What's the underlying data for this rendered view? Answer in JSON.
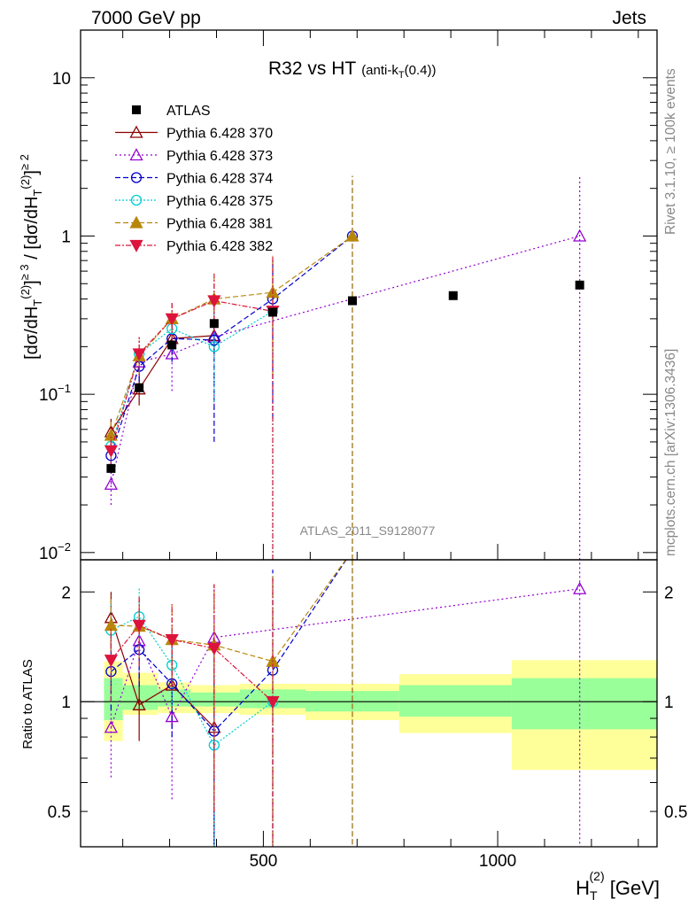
{
  "header": {
    "left": "7000 GeV pp",
    "right": "Jets"
  },
  "side": {
    "rivet": "Rivet 3.1.10, ≥ 100k events",
    "source": "mcplots.cern.ch [arXiv:1306.3436]"
  },
  "chart_data": [
    {
      "type": "scatter",
      "title": "R32 vs HT",
      "title_small": "(anti-k",
      "title_small_sub": "T",
      "title_small_end": "(0.4))",
      "analysis_label": "ATLAS_2011_S9128077",
      "yscale": "log",
      "ylim": [
        0.009,
        20
      ],
      "xlim": [
        110,
        1340
      ],
      "y_ticks": [
        {
          "value": 0.01,
          "base": "10",
          "exp": "−2"
        },
        {
          "value": 0.1,
          "base": "10",
          "exp": "−1"
        },
        {
          "value": 1,
          "base": "1",
          "exp": ""
        },
        {
          "value": 10,
          "base": "10",
          "exp": ""
        }
      ],
      "ylabel": {
        "a": "[dσ/dH",
        "b": "T",
        "c": "(2)",
        "d": "]",
        "e": "≥ 3",
        "f": " / [dσ/dH",
        "g": "T",
        "h": "(2)",
        "i": "]",
        "j": "≥ 2"
      },
      "series": [
        {
          "name": "ATLAS",
          "marker": "square",
          "color": "#000000",
          "line": "none",
          "x": [
            175,
            235,
            305,
            395,
            520,
            690,
            905,
            1175
          ],
          "y": [
            0.034,
            0.11,
            0.205,
            0.28,
            0.33,
            0.39,
            0.42,
            0.49
          ],
          "bins": [
            [
              160,
              200
            ],
            [
              200,
              275
            ],
            [
              275,
              345
            ],
            [
              345,
              450
            ],
            [
              450,
              590
            ],
            [
              590,
              790
            ],
            [
              790,
              1030
            ],
            [
              1030,
              1340
            ]
          ]
        },
        {
          "name": "Pythia 6.428 370",
          "marker": "tri-open",
          "color": "#8b0000",
          "dash": "",
          "x": [
            175,
            235,
            305,
            395
          ],
          "y": [
            0.058,
            0.108,
            0.225,
            0.235
          ],
          "err": [
            [
              0.045,
              0.07
            ],
            [
              0.085,
              0.14
            ],
            [
              0.18,
              0.28
            ],
            [
              0.18,
              0.29
            ]
          ]
        },
        {
          "name": "Pythia 6.428 373",
          "marker": "tri-open",
          "color": "#9400d3",
          "dash": "2,3",
          "x": [
            175,
            235,
            305,
            395,
            1175
          ],
          "y": [
            0.027,
            0.16,
            0.18,
            0.23,
            1.0
          ],
          "err": [
            [
              0.02,
              0.037
            ],
            [
              0.12,
              0.21
            ],
            [
              0.105,
              0.28
            ],
            [
              0.08,
              0.37
            ],
            [
              0.009,
              2.4
            ]
          ]
        },
        {
          "name": "Pythia 6.428 374",
          "marker": "circle-open",
          "color": "#0000cd",
          "dash": "6,3",
          "x": [
            175,
            235,
            305,
            395,
            520,
            690
          ],
          "y": [
            0.041,
            0.15,
            0.225,
            0.22,
            0.4,
            1.0
          ],
          "err": [
            [
              0.032,
              0.052
            ],
            [
              0.12,
              0.19
            ],
            [
              0.16,
              0.3
            ],
            [
              0.05,
              0.4
            ],
            [
              0.07,
              0.7
            ],
            [
              0.009,
              2.4
            ]
          ]
        },
        {
          "name": "Pythia 6.428 375",
          "marker": "circle-open",
          "color": "#00ced1",
          "dash": "2,2",
          "x": [
            175,
            235,
            305,
            395,
            520
          ],
          "y": [
            0.047,
            0.18,
            0.26,
            0.2,
            0.335
          ],
          "err": [
            [
              0.037,
              0.058
            ],
            [
              0.14,
              0.23
            ],
            [
              0.19,
              0.34
            ],
            [
              0.09,
              0.33
            ],
            [
              0.009,
              0.7
            ]
          ]
        },
        {
          "name": "Pythia 6.428 381",
          "marker": "tri-filled",
          "color": "#b8860b",
          "dash": "6,3",
          "x": [
            175,
            235,
            305,
            395,
            520,
            690
          ],
          "y": [
            0.055,
            0.175,
            0.3,
            0.4,
            0.44,
            1.0
          ],
          "err": [
            [
              0.044,
              0.067
            ],
            [
              0.135,
              0.22
            ],
            [
              0.22,
              0.38
            ],
            [
              0.26,
              0.55
            ],
            [
              0.13,
              0.75
            ],
            [
              0.009,
              2.4
            ]
          ]
        },
        {
          "name": "Pythia 6.428 382",
          "marker": "tri-down-filled",
          "color": "#dc143c",
          "dash": "6,2,2,2",
          "x": [
            175,
            235,
            305,
            395,
            520
          ],
          "y": [
            0.044,
            0.18,
            0.3,
            0.39,
            0.335
          ],
          "err": [
            [
              0.035,
              0.055
            ],
            [
              0.14,
              0.23
            ],
            [
              0.22,
              0.38
            ],
            [
              0.25,
              0.58
            ],
            [
              0.009,
              0.74
            ]
          ]
        }
      ]
    },
    {
      "type": "scatter",
      "ylabel": "Ratio to ATLAS",
      "xlabel": {
        "a": "H",
        "sub": "T",
        "sup": "(2)",
        "b": " [GeV]"
      },
      "yscale": "log",
      "ylim": [
        0.4,
        2.45
      ],
      "xlim": [
        110,
        1340
      ],
      "x_ticks": [
        500,
        1000
      ],
      "y_ticks": [
        {
          "value": 0.5,
          "label": "0.5"
        },
        {
          "value": 1,
          "label": "1"
        },
        {
          "value": 2,
          "label": "2"
        }
      ],
      "bands": [
        {
          "x0": 160,
          "x1": 200,
          "inner": [
            0.89,
            1.16
          ],
          "outer": [
            0.78,
            1.29
          ]
        },
        {
          "x0": 200,
          "x1": 275,
          "inner": [
            0.95,
            1.11
          ],
          "outer": [
            0.92,
            1.2
          ]
        },
        {
          "x0": 275,
          "x1": 345,
          "inner": [
            0.97,
            1.08
          ],
          "outer": [
            0.93,
            1.13
          ]
        },
        {
          "x0": 345,
          "x1": 450,
          "inner": [
            0.97,
            1.06
          ],
          "outer": [
            0.93,
            1.11
          ]
        },
        {
          "x0": 450,
          "x1": 590,
          "inner": [
            0.96,
            1.08
          ],
          "outer": [
            0.92,
            1.12
          ]
        },
        {
          "x0": 590,
          "x1": 790,
          "inner": [
            0.94,
            1.07
          ],
          "outer": [
            0.89,
            1.12
          ]
        },
        {
          "x0": 790,
          "x1": 1030,
          "inner": [
            0.91,
            1.11
          ],
          "outer": [
            0.82,
            1.19
          ]
        },
        {
          "x0": 1030,
          "x1": 1340,
          "inner": [
            0.84,
            1.16
          ],
          "outer": [
            0.65,
            1.3
          ]
        }
      ],
      "series": [
        {
          "name": "Pythia 6.428 370",
          "x": [
            175,
            235,
            305,
            395
          ],
          "y": [
            1.7,
            0.98,
            1.11,
            0.85
          ],
          "err": [
            [
              1.4,
              2.0
            ],
            [
              0.78,
              1.2
            ],
            [
              0.85,
              1.35
            ],
            [
              0.4,
              1.3
            ]
          ]
        },
        {
          "name": "Pythia 6.428 373",
          "x": [
            175,
            235,
            305,
            395,
            1175
          ],
          "y": [
            0.85,
            1.47,
            0.91,
            1.5,
            2.04
          ],
          "err": [
            [
              0.62,
              1.1
            ],
            [
              1.1,
              1.9
            ],
            [
              0.54,
              1.35
            ],
            [
              0.3,
              2.1
            ],
            [
              0.3,
              2.45
            ]
          ]
        },
        {
          "name": "Pythia 6.428 374",
          "x": [
            175,
            235,
            305,
            395,
            520,
            690
          ],
          "y": [
            1.21,
            1.39,
            1.12,
            0.83,
            1.22,
            2.6
          ],
          "err": [
            [
              0.95,
              1.5
            ],
            [
              1.1,
              1.7
            ],
            [
              0.8,
              1.45
            ],
            [
              0.3,
              1.35
            ],
            [
              0.3,
              2.3
            ],
            [
              0.3,
              2.6
            ]
          ]
        },
        {
          "name": "Pythia 6.428 375",
          "x": [
            175,
            235,
            305,
            395,
            520
          ],
          "y": [
            1.57,
            1.71,
            1.26,
            0.76,
            1.0
          ],
          "err": [
            [
              1.25,
              1.9
            ],
            [
              1.35,
              2.05
            ],
            [
              0.95,
              1.6
            ],
            [
              0.3,
              1.25
            ],
            [
              0.3,
              2.2
            ]
          ]
        },
        {
          "name": "Pythia 6.428 381",
          "x": [
            175,
            235,
            305,
            395,
            520,
            690
          ],
          "y": [
            1.62,
            1.61,
            1.48,
            1.43,
            1.29,
            2.6
          ],
          "err": [
            [
              1.3,
              1.95
            ],
            [
              1.25,
              1.95
            ],
            [
              1.1,
              1.85
            ],
            [
              0.5,
              2.1
            ],
            [
              0.3,
              2.25
            ],
            [
              0.3,
              2.6
            ]
          ]
        },
        {
          "name": "Pythia 6.428 382",
          "x": [
            175,
            235,
            305,
            395,
            520
          ],
          "y": [
            1.3,
            1.62,
            1.48,
            1.4,
            1.0
          ],
          "err": [
            [
              1.0,
              1.6
            ],
            [
              1.25,
              1.95
            ],
            [
              1.1,
              1.85
            ],
            [
              0.5,
              2.1
            ],
            [
              0.3,
              2.2
            ]
          ]
        }
      ]
    }
  ]
}
